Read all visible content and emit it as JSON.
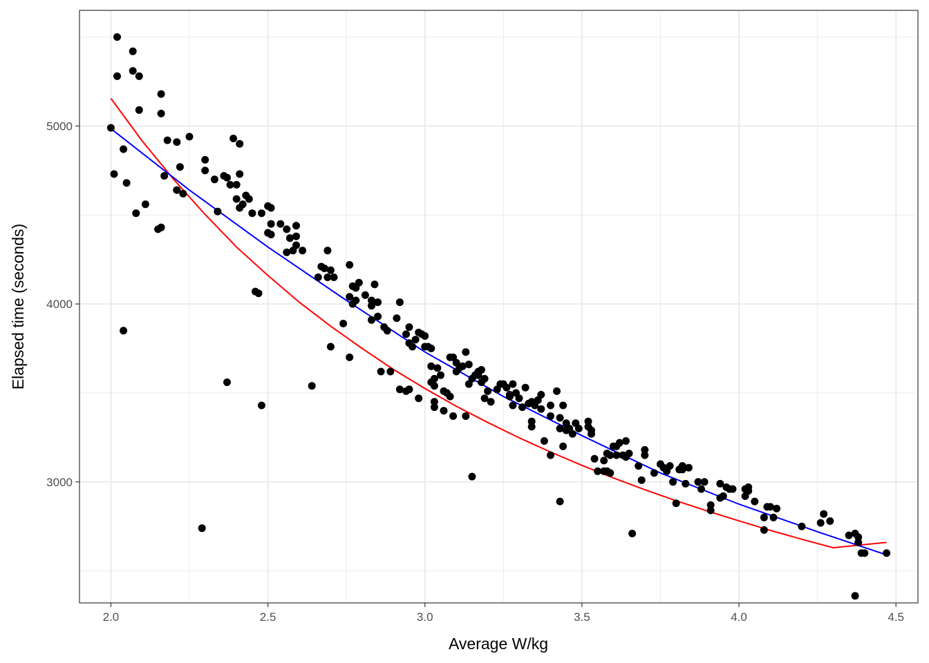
{
  "chart_data": {
    "type": "scatter",
    "xlabel": "Average W/kg",
    "ylabel": "Elapsed time (seconds)",
    "xlim": [
      1.9,
      4.57
    ],
    "ylim": [
      2320,
      5650
    ],
    "x_ticks": [
      2.0,
      2.5,
      3.0,
      3.5,
      4.0,
      4.5
    ],
    "x_tick_labels": [
      "2.0",
      "2.5",
      "3.0",
      "3.5",
      "4.0",
      "4.5"
    ],
    "y_ticks": [
      3000,
      4000,
      5000
    ],
    "y_tick_labels": [
      "3000",
      "4000",
      "5000"
    ],
    "y_minor_ticks": [
      2500,
      3500,
      4500,
      5500
    ],
    "x_minor_ticks": [
      2.25,
      2.75,
      3.25,
      3.75,
      4.25
    ],
    "grid": true,
    "legend": "none",
    "colors": {
      "points": "#000000",
      "fit_red": "#ff0000",
      "fit_blue": "#0000ff",
      "grid": "#ebebeb",
      "panel_border": "#333333"
    },
    "series": [
      {
        "type": "scatter",
        "points": [
          [
            2.0,
            4990
          ],
          [
            2.02,
            5500
          ],
          [
            2.02,
            5280
          ],
          [
            2.07,
            5420
          ],
          [
            2.07,
            5310
          ],
          [
            2.09,
            5280
          ],
          [
            2.09,
            5090
          ],
          [
            2.16,
            5180
          ],
          [
            2.16,
            5070
          ],
          [
            2.01,
            4730
          ],
          [
            2.04,
            4870
          ],
          [
            2.05,
            4680
          ],
          [
            2.08,
            4510
          ],
          [
            2.11,
            4560
          ],
          [
            2.15,
            4420
          ],
          [
            2.16,
            4430
          ],
          [
            2.17,
            4720
          ],
          [
            2.18,
            4920
          ],
          [
            2.21,
            4910
          ],
          [
            2.22,
            4770
          ],
          [
            2.21,
            4640
          ],
          [
            2.23,
            4620
          ],
          [
            2.25,
            4940
          ],
          [
            2.04,
            3850
          ],
          [
            2.29,
            2740
          ],
          [
            2.3,
            4810
          ],
          [
            2.3,
            4750
          ],
          [
            2.33,
            4700
          ],
          [
            2.34,
            4520
          ],
          [
            2.36,
            4720
          ],
          [
            2.37,
            4710
          ],
          [
            2.38,
            4670
          ],
          [
            2.39,
            4930
          ],
          [
            2.4,
            4670
          ],
          [
            2.41,
            4900
          ],
          [
            2.41,
            4730
          ],
          [
            2.4,
            4590
          ],
          [
            2.41,
            4540
          ],
          [
            2.42,
            4560
          ],
          [
            2.43,
            4610
          ],
          [
            2.44,
            4590
          ],
          [
            2.45,
            4510
          ],
          [
            2.46,
            4070
          ],
          [
            2.47,
            4060
          ],
          [
            2.48,
            4510
          ],
          [
            2.37,
            3560
          ],
          [
            2.48,
            3430
          ],
          [
            2.5,
            4550
          ],
          [
            2.51,
            4540
          ],
          [
            2.51,
            4450
          ],
          [
            2.5,
            4400
          ],
          [
            2.51,
            4390
          ],
          [
            2.54,
            4450
          ],
          [
            2.56,
            4420
          ],
          [
            2.56,
            4290
          ],
          [
            2.57,
            4370
          ],
          [
            2.58,
            4300
          ],
          [
            2.59,
            4440
          ],
          [
            2.59,
            4380
          ],
          [
            2.59,
            4330
          ],
          [
            2.61,
            4300
          ],
          [
            2.64,
            3540
          ],
          [
            2.66,
            4150
          ],
          [
            2.67,
            4210
          ],
          [
            2.68,
            4200
          ],
          [
            2.69,
            4300
          ],
          [
            2.7,
            4190
          ],
          [
            2.69,
            4150
          ],
          [
            2.71,
            4150
          ],
          [
            2.7,
            3760
          ],
          [
            2.74,
            3890
          ],
          [
            2.76,
            4220
          ],
          [
            2.76,
            4040
          ],
          [
            2.77,
            4100
          ],
          [
            2.78,
            4090
          ],
          [
            2.78,
            4020
          ],
          [
            2.79,
            4120
          ],
          [
            2.77,
            4000
          ],
          [
            2.76,
            3700
          ],
          [
            2.81,
            4050
          ],
          [
            2.83,
            4020
          ],
          [
            2.83,
            3990
          ],
          [
            2.84,
            4110
          ],
          [
            2.83,
            3910
          ],
          [
            2.85,
            4010
          ],
          [
            2.85,
            3930
          ],
          [
            2.87,
            3870
          ],
          [
            2.88,
            3850
          ],
          [
            2.86,
            3620
          ],
          [
            2.89,
            3620
          ],
          [
            2.91,
            3920
          ],
          [
            2.92,
            4010
          ],
          [
            2.94,
            3830
          ],
          [
            2.95,
            3870
          ],
          [
            2.95,
            3780
          ],
          [
            2.96,
            3760
          ],
          [
            2.97,
            3800
          ],
          [
            2.98,
            3840
          ],
          [
            2.99,
            3830
          ],
          [
            3.0,
            3820
          ],
          [
            3.0,
            3760
          ],
          [
            3.01,
            3760
          ],
          [
            2.92,
            3520
          ],
          [
            2.94,
            3510
          ],
          [
            2.95,
            3520
          ],
          [
            2.98,
            3470
          ],
          [
            3.02,
            3750
          ],
          [
            3.02,
            3650
          ],
          [
            3.03,
            3580
          ],
          [
            3.02,
            3560
          ],
          [
            3.03,
            3540
          ],
          [
            3.04,
            3640
          ],
          [
            3.05,
            3600
          ],
          [
            3.03,
            3450
          ],
          [
            3.03,
            3420
          ],
          [
            3.06,
            3510
          ],
          [
            3.07,
            3500
          ],
          [
            3.06,
            3400
          ],
          [
            3.08,
            3480
          ],
          [
            3.08,
            3700
          ],
          [
            3.09,
            3700
          ],
          [
            3.09,
            3370
          ],
          [
            3.1,
            3670
          ],
          [
            3.1,
            3620
          ],
          [
            3.11,
            3640
          ],
          [
            3.12,
            3650
          ],
          [
            3.13,
            3370
          ],
          [
            3.14,
            3550
          ],
          [
            3.13,
            3730
          ],
          [
            3.14,
            3660
          ],
          [
            3.15,
            3580
          ],
          [
            3.15,
            3030
          ],
          [
            3.16,
            3600
          ],
          [
            3.17,
            3620
          ],
          [
            3.18,
            3630
          ],
          [
            3.17,
            3600
          ],
          [
            3.18,
            3560
          ],
          [
            3.19,
            3580
          ],
          [
            3.19,
            3470
          ],
          [
            3.2,
            3510
          ],
          [
            3.21,
            3450
          ],
          [
            3.23,
            3520
          ],
          [
            3.24,
            3550
          ],
          [
            3.25,
            3550
          ],
          [
            3.26,
            3530
          ],
          [
            3.27,
            3490
          ],
          [
            3.28,
            3550
          ],
          [
            3.27,
            3480
          ],
          [
            3.28,
            3430
          ],
          [
            3.29,
            3500
          ],
          [
            3.3,
            3470
          ],
          [
            3.31,
            3420
          ],
          [
            3.32,
            3530
          ],
          [
            3.33,
            3440
          ],
          [
            3.34,
            3450
          ],
          [
            3.34,
            3340
          ],
          [
            3.34,
            3310
          ],
          [
            3.35,
            3430
          ],
          [
            3.36,
            3460
          ],
          [
            3.37,
            3410
          ],
          [
            3.37,
            3490
          ],
          [
            3.38,
            3230
          ],
          [
            3.4,
            3430
          ],
          [
            3.4,
            3150
          ],
          [
            3.4,
            3370
          ],
          [
            3.42,
            3510
          ],
          [
            3.43,
            3360
          ],
          [
            3.43,
            3300
          ],
          [
            3.44,
            3430
          ],
          [
            3.44,
            3200
          ],
          [
            3.43,
            2890
          ],
          [
            3.45,
            3330
          ],
          [
            3.45,
            3290
          ],
          [
            3.46,
            3300
          ],
          [
            3.47,
            3270
          ],
          [
            3.48,
            3330
          ],
          [
            3.49,
            3300
          ],
          [
            3.52,
            3340
          ],
          [
            3.52,
            3310
          ],
          [
            3.53,
            3290
          ],
          [
            3.53,
            3270
          ],
          [
            3.54,
            3130
          ],
          [
            3.55,
            3060
          ],
          [
            3.57,
            3060
          ],
          [
            3.57,
            3120
          ],
          [
            3.58,
            3160
          ],
          [
            3.58,
            3060
          ],
          [
            3.59,
            3150
          ],
          [
            3.59,
            3050
          ],
          [
            3.6,
            3200
          ],
          [
            3.61,
            3200
          ],
          [
            3.61,
            3150
          ],
          [
            3.62,
            3220
          ],
          [
            3.63,
            3150
          ],
          [
            3.64,
            3230
          ],
          [
            3.64,
            3140
          ],
          [
            3.65,
            3160
          ],
          [
            3.66,
            2710
          ],
          [
            3.68,
            3090
          ],
          [
            3.69,
            3010
          ],
          [
            3.7,
            3180
          ],
          [
            3.7,
            3150
          ],
          [
            3.73,
            3050
          ],
          [
            3.75,
            3100
          ],
          [
            3.76,
            3080
          ],
          [
            3.77,
            3060
          ],
          [
            3.77,
            3070
          ],
          [
            3.78,
            3090
          ],
          [
            3.79,
            3000
          ],
          [
            3.8,
            2880
          ],
          [
            3.81,
            3070
          ],
          [
            3.82,
            3090
          ],
          [
            3.82,
            3070
          ],
          [
            3.83,
            2990
          ],
          [
            3.84,
            3080
          ],
          [
            3.87,
            3000
          ],
          [
            3.88,
            2960
          ],
          [
            3.89,
            3000
          ],
          [
            3.91,
            2840
          ],
          [
            3.91,
            2870
          ],
          [
            3.94,
            2990
          ],
          [
            3.94,
            2910
          ],
          [
            3.95,
            2920
          ],
          [
            3.96,
            2970
          ],
          [
            3.97,
            2960
          ],
          [
            3.98,
            2960
          ],
          [
            4.02,
            2960
          ],
          [
            4.02,
            2920
          ],
          [
            4.03,
            2970
          ],
          [
            4.03,
            2950
          ],
          [
            4.05,
            2890
          ],
          [
            4.08,
            2800
          ],
          [
            4.08,
            2730
          ],
          [
            4.09,
            2860
          ],
          [
            4.1,
            2860
          ],
          [
            4.11,
            2800
          ],
          [
            4.12,
            2850
          ],
          [
            4.2,
            2750
          ],
          [
            4.26,
            2770
          ],
          [
            4.27,
            2820
          ],
          [
            4.29,
            2780
          ],
          [
            4.35,
            2700
          ],
          [
            4.37,
            2710
          ],
          [
            4.38,
            2690
          ],
          [
            4.38,
            2660
          ],
          [
            4.39,
            2600
          ],
          [
            4.4,
            2600
          ],
          [
            4.37,
            2360
          ],
          [
            4.47,
            2600
          ]
        ]
      },
      {
        "type": "line",
        "x": [
          2.0,
          2.1,
          2.2,
          2.3,
          2.4,
          2.5,
          2.6,
          2.7,
          2.8,
          2.9,
          3.0,
          3.1,
          3.2,
          3.3,
          3.4,
          3.5,
          3.6,
          3.7,
          3.8,
          3.9,
          4.0,
          4.1,
          4.2,
          4.3,
          4.47
        ],
        "y": [
          5155,
          4915,
          4700,
          4503,
          4320,
          4160,
          4010,
          3875,
          3750,
          3632,
          3525,
          3425,
          3334,
          3248,
          3168,
          3093,
          3022,
          2956,
          2894,
          2836,
          2781,
          2728,
          2678,
          2630,
          2660
        ]
      },
      {
        "type": "line",
        "x": [
          2.0,
          2.25,
          2.5,
          2.75,
          3.0,
          3.25,
          3.5,
          3.75,
          4.0,
          4.25,
          4.47
        ],
        "y": [
          4985,
          4640,
          4320,
          4020,
          3730,
          3480,
          3260,
          3050,
          2875,
          2720,
          2590
        ]
      }
    ]
  }
}
